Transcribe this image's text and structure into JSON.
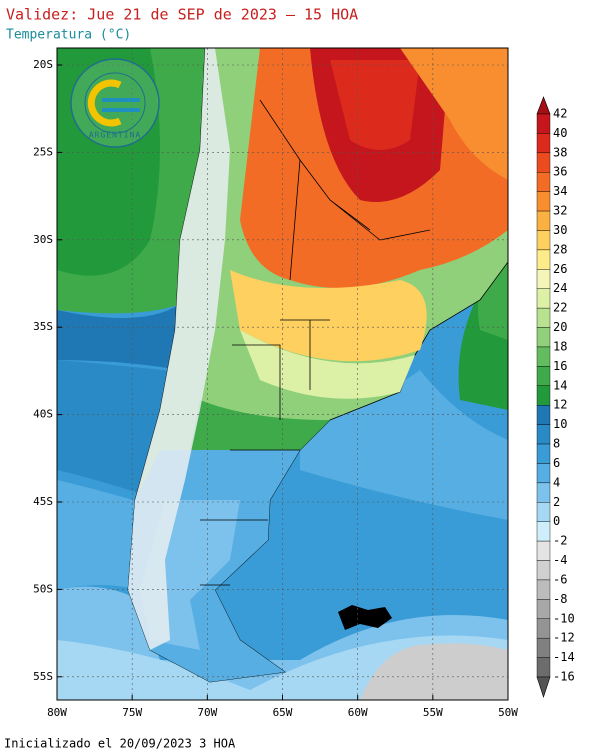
{
  "header": {
    "title": "Validez: Jue 21 de SEP de 2023 — 15 HOA",
    "subtitle": "Temperatura (°C)"
  },
  "map": {
    "lat_labels": [
      "20S",
      "25S",
      "30S",
      "35S",
      "40S",
      "45S",
      "50S",
      "55S"
    ],
    "lon_labels": [
      "80W",
      "75W",
      "70W",
      "65W",
      "60W",
      "55W",
      "50W"
    ]
  },
  "logo": {
    "text": "ARGENTINA"
  },
  "colorbar": {
    "levels": [
      42,
      40,
      38,
      36,
      34,
      32,
      30,
      28,
      26,
      24,
      22,
      20,
      18,
      16,
      14,
      12,
      10,
      8,
      6,
      4,
      2,
      0,
      -2,
      -4,
      -6,
      -8,
      -10,
      -12,
      -14,
      -16
    ],
    "colors": [
      "#a50f15",
      "#c4161c",
      "#dc2a1c",
      "#ec4a1f",
      "#f36c25",
      "#f88e30",
      "#fbb042",
      "#fdd060",
      "#feeb8a",
      "#f3f6b6",
      "#dcf0a6",
      "#b9e290",
      "#90d07a",
      "#63bd5e",
      "#3faa4a",
      "#229a3c",
      "#1f78b4",
      "#2a8ac6",
      "#3a9cd6",
      "#56aee2",
      "#7cc2ec",
      "#a6d8f3",
      "#cdeefa",
      "#e4e4e4",
      "#d0d0d0",
      "#bcbcbc",
      "#a8a8a8",
      "#949494",
      "#808080",
      "#6c6c6c",
      "#555555"
    ]
  },
  "footer": "Inicializado el 20/09/2023 3 HOA"
}
